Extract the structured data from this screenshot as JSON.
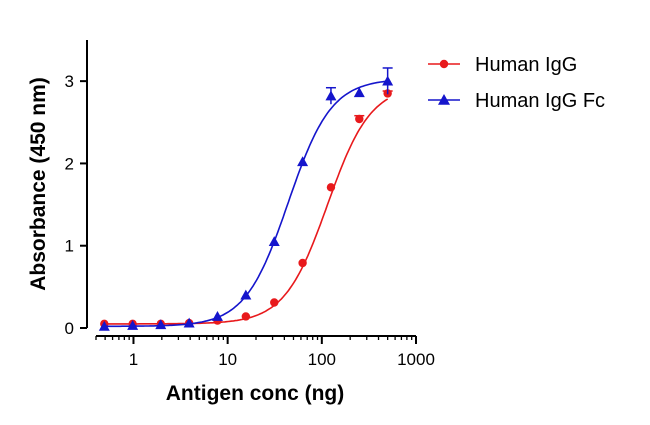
{
  "chart_data": {
    "type": "scatter",
    "xlabel": "Antigen conc (ng)",
    "ylabel": "Absorbance (450 nm)",
    "xscale": "log",
    "xlim": [
      0.4,
      1000
    ],
    "ylim": [
      0,
      3.5
    ],
    "x_ticks": [
      1,
      10,
      100,
      1000
    ],
    "x_tick_labels": [
      "1",
      "10",
      "100",
      "1000"
    ],
    "y_ticks": [
      0,
      1,
      2,
      3
    ],
    "y_tick_labels": [
      "0",
      "1",
      "2",
      "3"
    ],
    "grid": false,
    "legend": "top-right",
    "series": [
      {
        "name": "Human IgG",
        "color": "#e8191c",
        "marker": "circle",
        "x": [
          0.49,
          0.98,
          1.95,
          3.9,
          7.8,
          15.6,
          31.25,
          62.5,
          125,
          250,
          500
        ],
        "y": [
          0.05,
          0.05,
          0.05,
          0.06,
          0.09,
          0.14,
          0.31,
          0.79,
          1.71,
          2.54,
          2.85
        ],
        "err": [
          0,
          0,
          0,
          0,
          0,
          0,
          0,
          0,
          0,
          0.04,
          0.03
        ],
        "fit": {
          "bottom": 0.05,
          "top": 2.95,
          "ec50": 115,
          "hill": 1.9
        }
      },
      {
        "name": "Human IgG Fc",
        "color": "#1515cc",
        "marker": "triangle",
        "x": [
          0.49,
          0.98,
          1.95,
          3.9,
          7.8,
          15.6,
          31.25,
          62.5,
          125,
          250,
          500
        ],
        "y": [
          0.02,
          0.03,
          0.04,
          0.06,
          0.14,
          0.4,
          1.05,
          2.02,
          2.82,
          2.86,
          3.0
        ],
        "err": [
          0,
          0,
          0,
          0,
          0,
          0,
          0,
          0,
          0.1,
          0,
          0.16
        ],
        "fit": {
          "bottom": 0.02,
          "top": 3.03,
          "ec50": 44,
          "hill": 1.9
        }
      }
    ]
  }
}
